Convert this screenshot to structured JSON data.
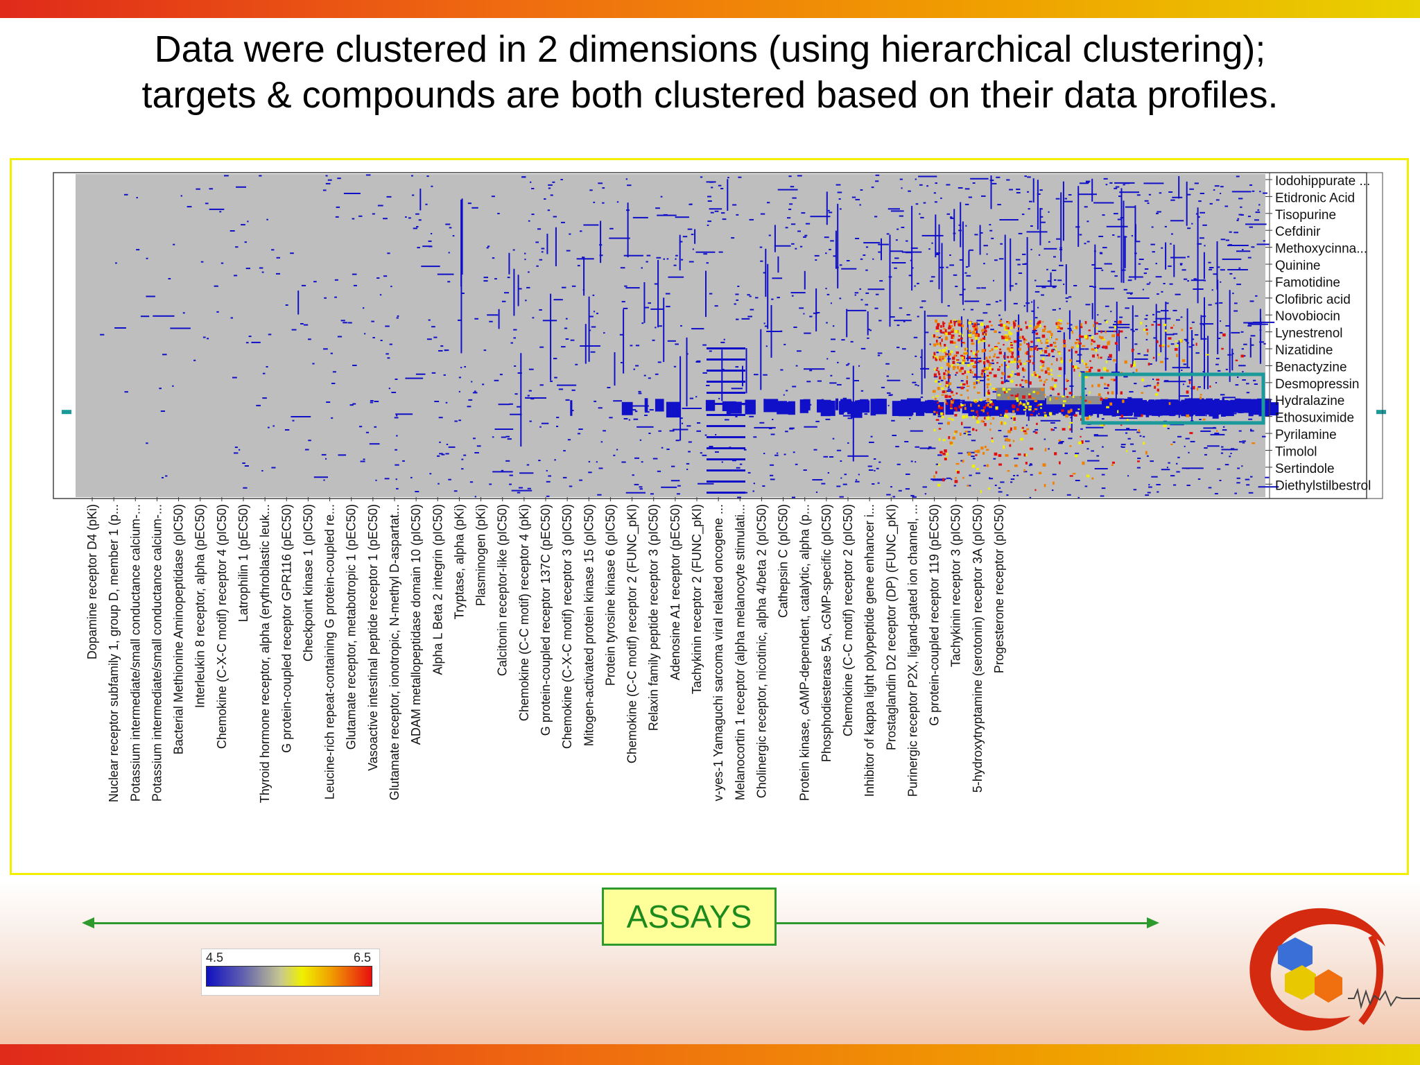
{
  "slide": {
    "title_line1": "Data were clustered in 2 dimensions (using hierarchical clustering);",
    "title_line2": "targets & compounds are both clustered based on their data profiles.",
    "assays_label": "ASSAYS"
  },
  "colors": {
    "background_cell": "#bebebe",
    "low": "#1010c8",
    "mid": "#f0f000",
    "high": "#e01010",
    "frame": "#f2ef00",
    "highlight_box": "#1a9a9a",
    "arrow": "#2e9a2e"
  },
  "color_scale": {
    "min_label": "4.5",
    "max_label": "6.5",
    "min": 4.5,
    "max": 6.5
  },
  "chart_data": {
    "type": "heatmap",
    "title": "",
    "xlabel": "",
    "ylabel": "",
    "grid": false,
    "value_range": [
      4.5,
      6.5
    ],
    "assays": [
      "Dopamine receptor D4 (pKi)",
      "Nuclear receptor subfamily 1, group D, member 1 (p...",
      "Potassium intermediate/small conductance calcium-...",
      "Potassium intermediate/small conductance calcium-...",
      "Bacterial Methionine Aminopeptidase (pIC50)",
      "Interleukin 8 receptor, alpha (pEC50)",
      "Chemokine (C-X-C motif) receptor 4 (pIC50)",
      "Latrophilin 1 (pEC50)",
      "Thyroid hormone receptor, alpha (erythroblastic leuk...",
      "G protein-coupled receptor GPR116 (pEC50)",
      "Checkpoint kinase 1 (pIC50)",
      "Leucine-rich repeat-containing G protein-coupled re...",
      "Glutamate receptor, metabotropic 1 (pEC50)",
      "Vasoactive intestinal peptide receptor 1 (pEC50)",
      "Glutamate receptor, ionotropic, N-methyl D-aspartat...",
      "ADAM metallopeptidase domain 10 (pIC50)",
      "Alpha L Beta 2 integrin (pIC50)",
      "Tryptase, alpha (pKi)",
      "Plasminogen (pKi)",
      "Calcitonin receptor-like (pIC50)",
      "Chemokine (C-C motif) receptor 4 (pKi)",
      "G protein-coupled receptor 137C (pEC50)",
      "Chemokine (C-X-C motif) receptor 3 (pIC50)",
      "Mitogen-activated protein kinase 15 (pIC50)",
      "Protein tyrosine kinase 6 (pIC50)",
      "Chemokine (C-C motif) receptor 2 (FUNC_pKI)",
      "Relaxin family peptide receptor 3 (pIC50)",
      "Adenosine A1 receptor (pEC50)",
      "Tachykinin receptor 2 (FUNC_pKI)",
      "v-yes-1 Yamaguchi sarcoma viral related oncogene ...",
      "Melanocortin 1 receptor (alpha melanocyte stimulati...",
      "Cholinergic receptor, nicotinic, alpha 4/beta 2 (pIC50)",
      "Cathepsin C (pIC50)",
      "Protein kinase, cAMP-dependent, catalytic, alpha (p...",
      "Phosphodiesterase 5A, cGMP-specific (pIC50)",
      "Chemokine (C-C motif) receptor 2 (pIC50)",
      "Inhibitor of kappa light polypeptide gene enhancer i...",
      "Prostaglandin D2 receptor (DP) (FUNC_pKI)",
      "Purinergic receptor P2X, ligand-gated ion channel, ...",
      "G protein-coupled receptor 119 (pEC50)",
      "Tachykinin receptor 3 (pIC50)",
      "5-hydroxytryptamine (serotonin) receptor 3A (pIC50)",
      "Progesterone receptor (pIC50)"
    ],
    "compounds": [
      "Iodohippurate ...",
      "Etidronic Acid",
      "Tisopurine",
      "Cefdinir",
      "Methoxycinna...",
      "Quinine",
      "Famotidine",
      "Clofibric acid",
      "Novobiocin",
      "Lynestrenol",
      "Nizatidine",
      "Benactyzine",
      "Desmopressin",
      "Hydralazine",
      "Ethosuximide",
      "Pyrilamine",
      "Timolol",
      "Sertindole",
      "Diethylstilbestrol"
    ],
    "highlighted_compounds": [
      "Hydralazine",
      "Ethosuximide",
      "Pyrilamine"
    ]
  }
}
